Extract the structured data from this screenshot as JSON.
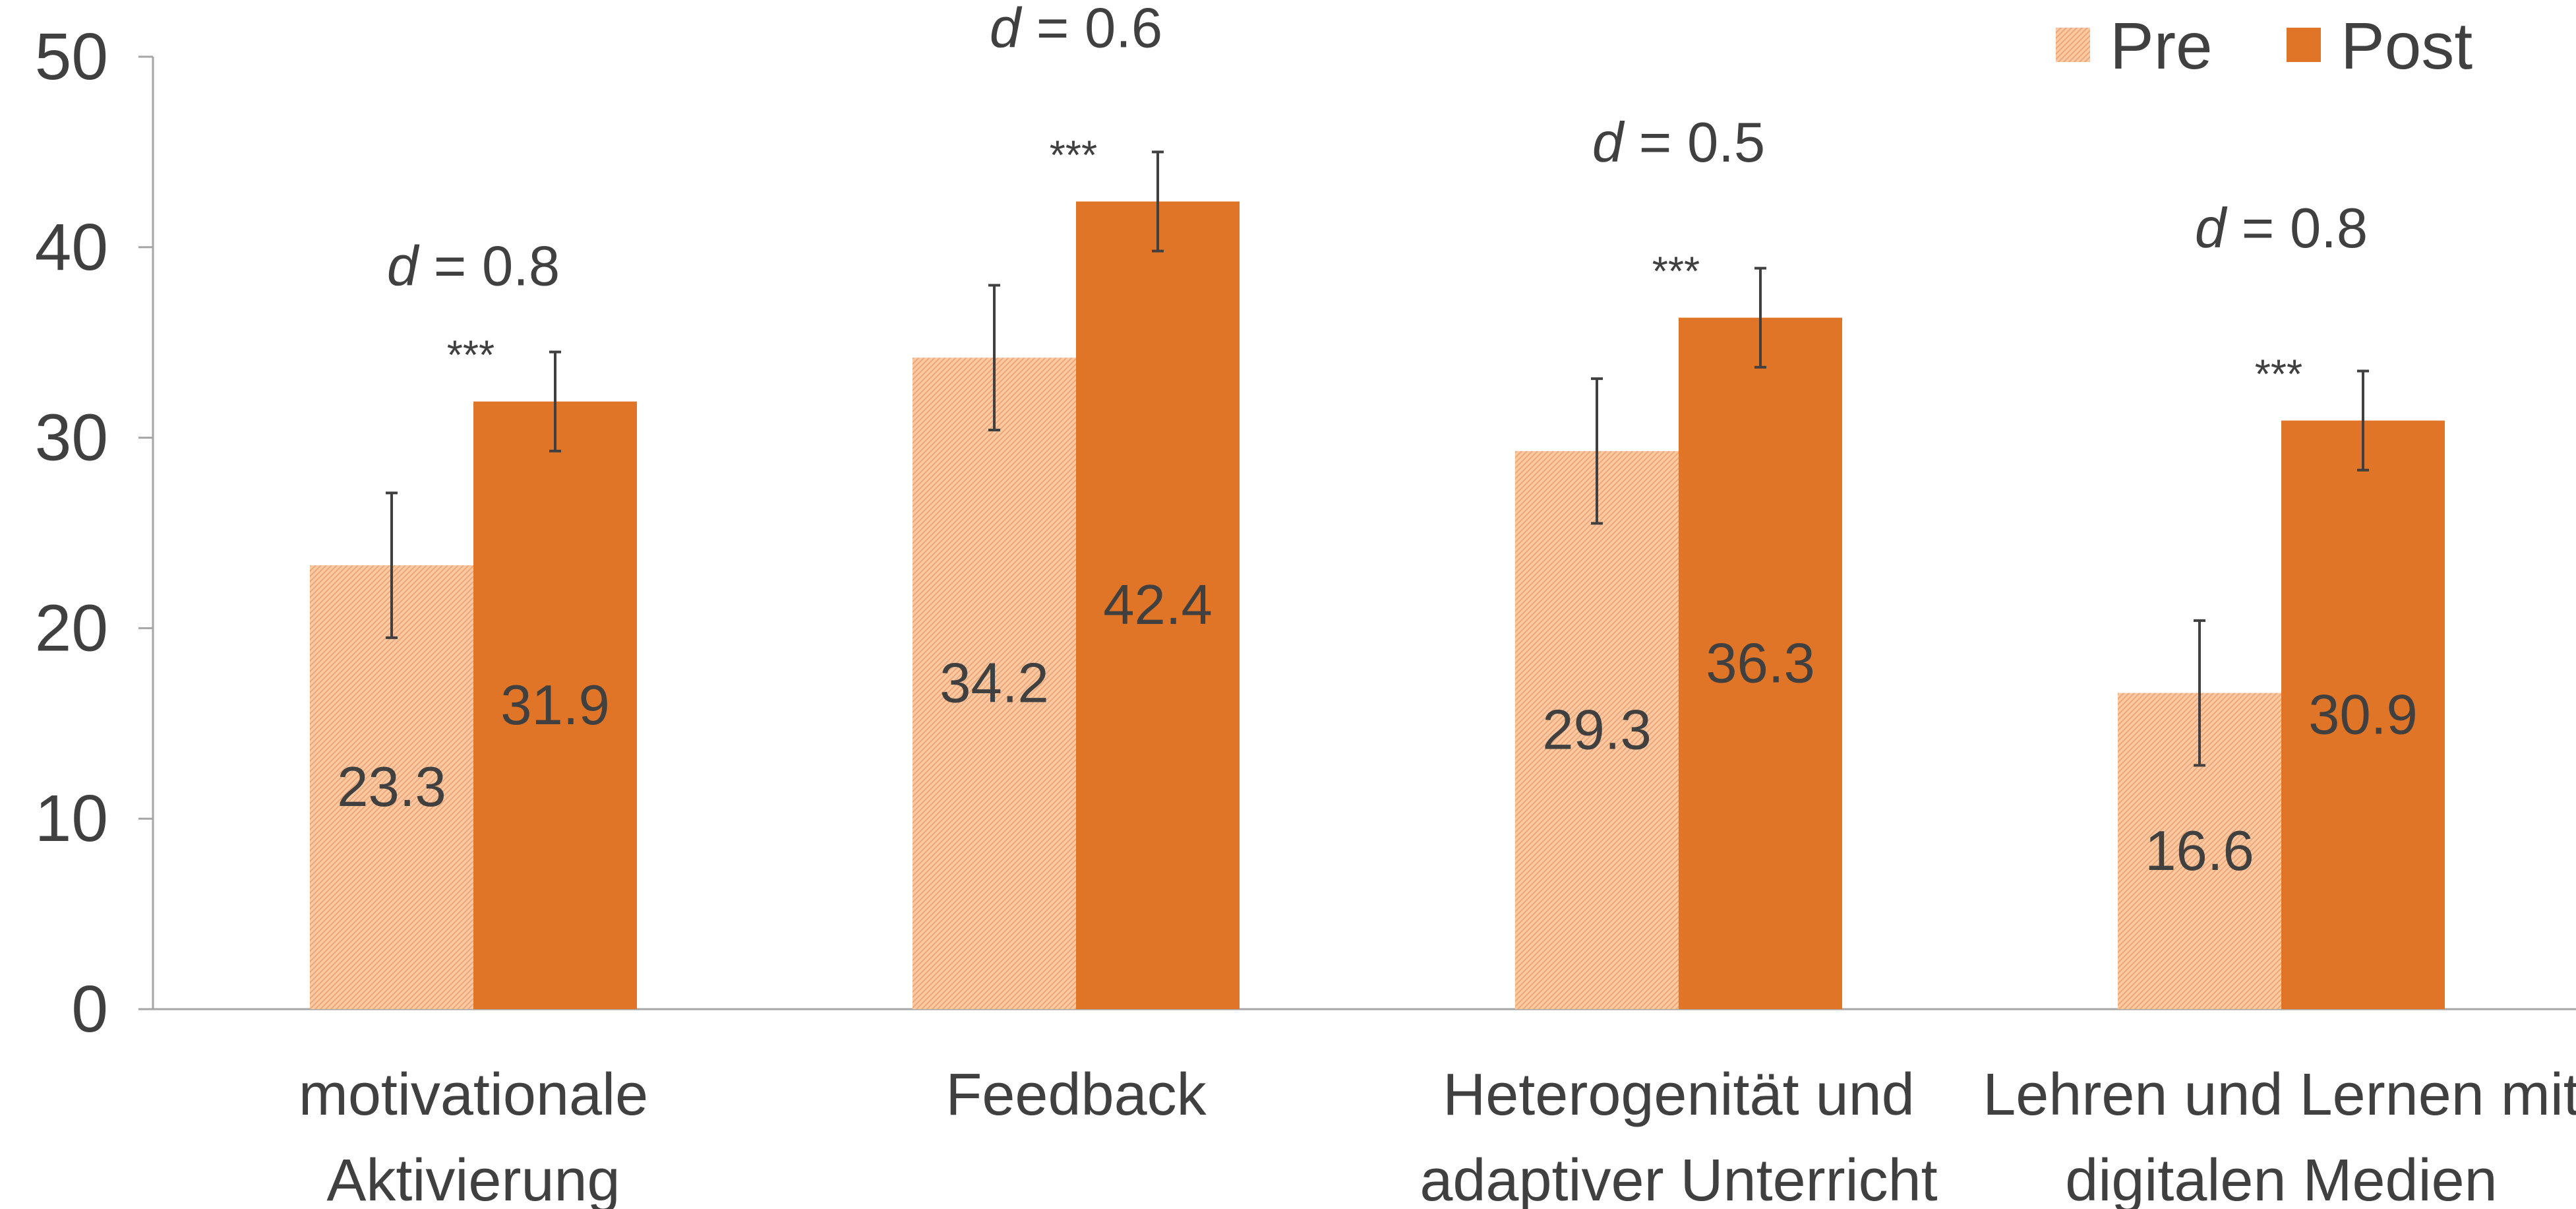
{
  "chart_data": {
    "type": "bar",
    "title": "",
    "xlabel": "",
    "ylabel": "",
    "ylim": [
      0,
      50
    ],
    "yticks": [
      "0",
      "10",
      "20",
      "30",
      "40",
      "50"
    ],
    "grid": false,
    "legend_position": "top-right",
    "categories": [
      [
        "motivationale",
        "Aktivierung"
      ],
      [
        "Feedback"
      ],
      [
        "Heterogenität und",
        "adaptiver Unterricht"
      ],
      [
        "Lehren und Lernen mit",
        "digitalen Medien"
      ]
    ],
    "series": [
      {
        "name": "Pre",
        "color": "#F4B183",
        "fill": "hatched",
        "values": [
          23.3,
          34.2,
          29.3,
          16.6
        ],
        "value_labels": [
          "23.3",
          "34.2",
          "29.3",
          "16.6"
        ],
        "error": [
          3.8,
          3.8,
          3.8,
          3.8
        ]
      },
      {
        "name": "Post",
        "color": "#E07427",
        "fill": "solid",
        "values": [
          31.9,
          42.4,
          36.3,
          30.9
        ],
        "value_labels": [
          "31.9",
          "42.4",
          "36.3",
          "30.9"
        ],
        "error": [
          2.6,
          2.6,
          2.6,
          2.6
        ]
      }
    ],
    "significance": [
      "***",
      "***",
      "***",
      "***"
    ],
    "effect_sizes": [
      {
        "symbol": "d",
        "text": " = 0.8"
      },
      {
        "symbol": "d",
        "text": " = 0.6"
      },
      {
        "symbol": "d",
        "text": " = 0.5"
      },
      {
        "symbol": "d",
        "text": " = 0.8"
      }
    ],
    "effect_size_level": [
      39,
      51.5,
      45.5,
      41
    ]
  }
}
